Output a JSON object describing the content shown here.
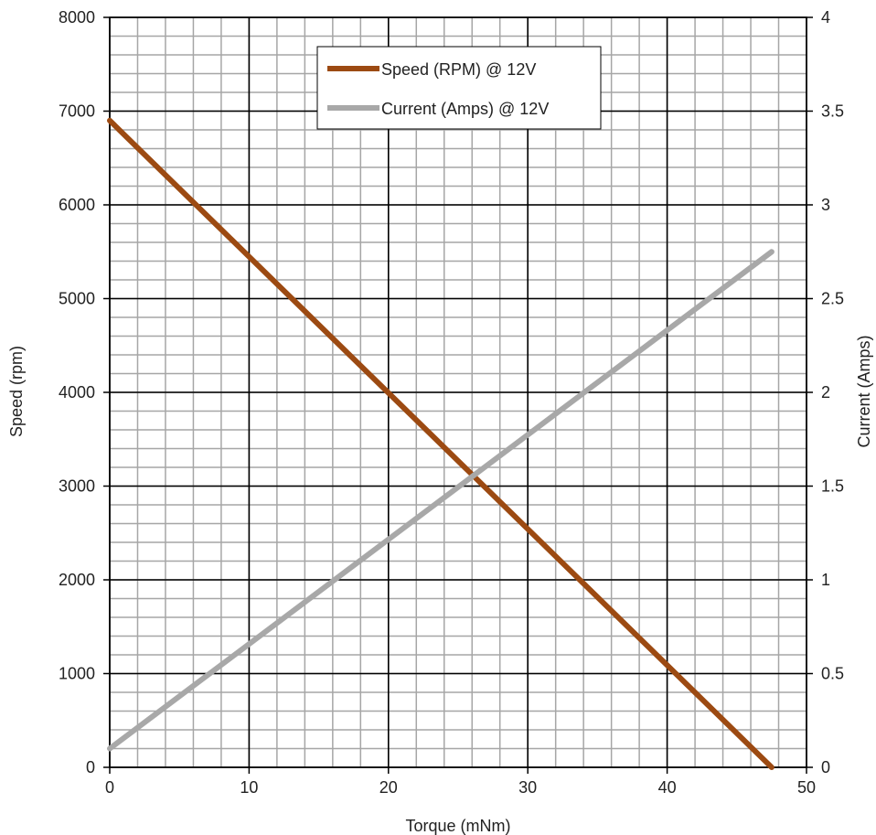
{
  "chart_data": {
    "type": "line",
    "title": "",
    "xlabel": "Torque (mNm)",
    "ylabel": "Speed (rpm)",
    "y2label": "Current (Amps)",
    "xlim": [
      0,
      50
    ],
    "ylim": [
      0,
      8000
    ],
    "y2lim": [
      0,
      4
    ],
    "x_ticks": [
      "0",
      "10",
      "20",
      "30",
      "40",
      "50"
    ],
    "y_ticks": [
      "0",
      "1000",
      "2000",
      "3000",
      "4000",
      "5000",
      "6000",
      "7000",
      "8000"
    ],
    "y2_ticks": [
      "0",
      "0.5",
      "1",
      "1.5",
      "2",
      "2.5",
      "3",
      "3.5",
      "4"
    ],
    "grid": true,
    "legend_position": "top-center",
    "series": [
      {
        "name": "Speed (RPM) @ 12V",
        "axis": "left",
        "color": "#9c4a12",
        "x": [
          0,
          47.5
        ],
        "y": [
          6900,
          0
        ]
      },
      {
        "name": "Current (Amps) @ 12V",
        "axis": "right",
        "color": "#a8a8a8",
        "x": [
          0,
          47.5
        ],
        "y": [
          0.1,
          2.75
        ]
      }
    ]
  }
}
